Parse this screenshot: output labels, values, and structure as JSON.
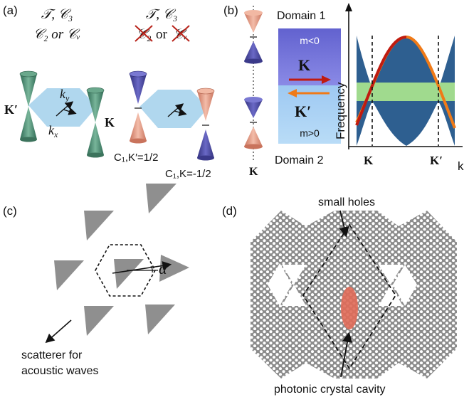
{
  "panels": {
    "a": {
      "label": "(a)",
      "left_sym_line1": "𝒯, 𝒞₃",
      "left_sym_line2": "𝒞₂ or 𝒞ᵥ",
      "right_sym_line1": "𝒯, 𝒞₃",
      "right_sym_line2_c2": "𝒞₂",
      "right_sym_line2_or": "or",
      "right_sym_line2_cv": "𝒞ᵥ",
      "k_prime_label": "K′",
      "k_label": "K",
      "ky_label": "k",
      "ky_sub": "y",
      "kx_label": "k",
      "kx_sub": "x",
      "chern_kprime": "C₁,K′=1/2",
      "chern_k": "C₁,K=-1/2"
    },
    "b": {
      "label": "(b)",
      "domain1": "Domain 1",
      "domain2": "Domain 2",
      "mass_neg": "m<0",
      "mass_pos": "m>0",
      "valley_k": "K",
      "valley_kprime": "K′",
      "k_bottom": "K",
      "axis_y": "Frequency",
      "axis_x": "k",
      "tick_k": "K",
      "tick_kprime": "K′"
    },
    "c": {
      "label": "(c)",
      "alpha": "α",
      "caption_line1": "scatterer for",
      "caption_line2": "acoustic waves"
    },
    "d": {
      "label": "(d)",
      "small_holes": "small holes",
      "cavity": "photonic crystal cavity"
    }
  },
  "colors": {
    "green_cone": "#4f8a72",
    "blue_cone": "#4b4a9c",
    "salmon_cone": "#e5a08a",
    "bz_blue": "#a7d3ec",
    "domain_dark": "#6f6fd6",
    "domain_light": "#a7cdf3",
    "band_fill": "#2e5f90",
    "gap_green": "#a6e08e",
    "red_arrow": "#c01b10",
    "orange_arrow": "#f07a17",
    "scatterer_gray": "#8f8f8f",
    "cavity_red": "#e06a58"
  }
}
